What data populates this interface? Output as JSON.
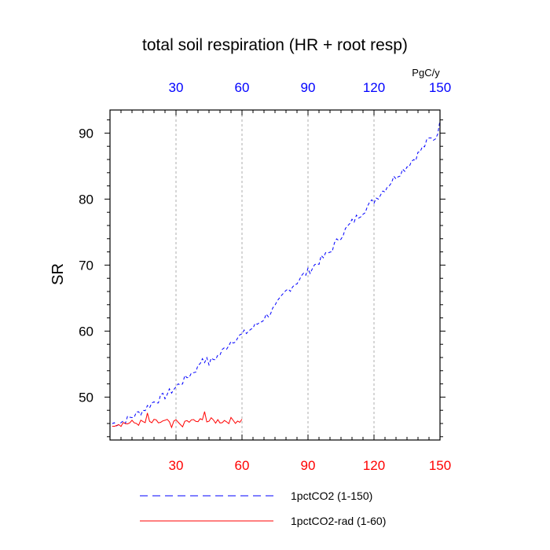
{
  "chart_data": {
    "type": "line",
    "title": "total soil respiration (HR + root resp)",
    "ylabel": "SR",
    "top_axis_unit": "PgC/y",
    "xlim": [
      0,
      150
    ],
    "ylim": [
      43.5,
      93.5
    ],
    "x_ticks": [
      30,
      60,
      90,
      120,
      150
    ],
    "y_ticks": [
      50,
      60,
      70,
      80,
      90
    ],
    "top_tick_color": "#0000ff",
    "bottom_tick_color": "#ff0000",
    "grid": "vertical dashed at x ticks",
    "legend_position": "bottom",
    "series": [
      {
        "name": "1pctCO2 (1-150)",
        "color": "#0000ff",
        "dash": "dashed",
        "x_range": [
          1,
          150
        ],
        "keypoints": [
          [
            1,
            46.0
          ],
          [
            5,
            46.2
          ],
          [
            10,
            47.0
          ],
          [
            15,
            48.0
          ],
          [
            20,
            49.3
          ],
          [
            25,
            50.2
          ],
          [
            30,
            51.5
          ],
          [
            35,
            53.0
          ],
          [
            40,
            54.5
          ],
          [
            42,
            56.0
          ],
          [
            45,
            55.2
          ],
          [
            50,
            56.5
          ],
          [
            55,
            58.5
          ],
          [
            60,
            59.4
          ],
          [
            65,
            60.5
          ],
          [
            70,
            62.0
          ],
          [
            75,
            63.5
          ],
          [
            80,
            66.0
          ],
          [
            85,
            67.5
          ],
          [
            88,
            68.5
          ],
          [
            90,
            69.0
          ],
          [
            95,
            70.6
          ],
          [
            100,
            72.0
          ],
          [
            105,
            74.5
          ],
          [
            110,
            76.5
          ],
          [
            115,
            78.2
          ],
          [
            120,
            79.8
          ],
          [
            125,
            81.6
          ],
          [
            130,
            83.5
          ],
          [
            135,
            85.0
          ],
          [
            140,
            86.8
          ],
          [
            145,
            89.0
          ],
          [
            148,
            89.3
          ],
          [
            150,
            91.5
          ]
        ],
        "noise": 0.6
      },
      {
        "name": "1pctCO2-rad (1-60)",
        "color": "#ff0000",
        "dash": "solid",
        "x_range": [
          1,
          60
        ],
        "keypoints": [
          [
            1,
            46.0
          ],
          [
            60,
            46.5
          ]
        ],
        "noise": 0.5,
        "spikes": [
          [
            17,
            47.6
          ],
          [
            28,
            45.4
          ],
          [
            33,
            45.5
          ],
          [
            43,
            47.8
          ]
        ]
      }
    ]
  }
}
